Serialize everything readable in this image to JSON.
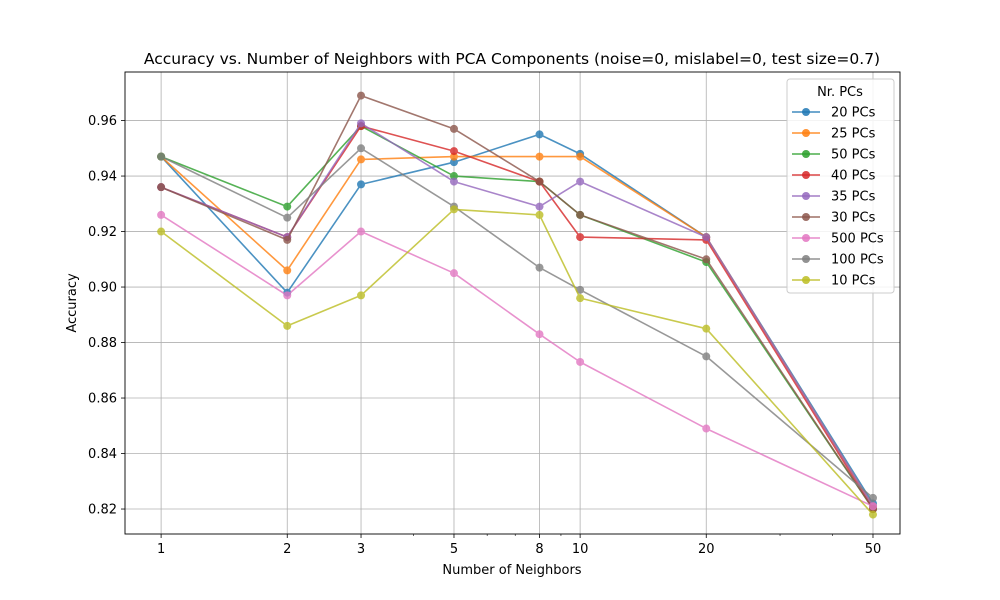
{
  "chart_data": {
    "type": "line",
    "title": "Accuracy vs. Number of Neighbors with PCA Components (noise=0, mislabel=0, test size=0.7)",
    "xlabel": "Number of Neighbors",
    "ylabel": "Accuracy",
    "x_scale": "log",
    "x": [
      1,
      2,
      3,
      5,
      8,
      10,
      20,
      50
    ],
    "x_tick_labels": [
      "1",
      "2",
      "3",
      "5",
      "8",
      "10",
      "20",
      "50"
    ],
    "ylim": [
      0.811,
      0.9775
    ],
    "y_ticks": [
      0.82,
      0.84,
      0.86,
      0.88,
      0.9,
      0.92,
      0.94,
      0.96
    ],
    "y_tick_labels": [
      "0.82",
      "0.84",
      "0.86",
      "0.88",
      "0.90",
      "0.92",
      "0.94",
      "0.96"
    ],
    "grid": true,
    "legend": {
      "title": "Nr. PCs",
      "placement": "top-right"
    },
    "series": [
      {
        "name": "20 PCs",
        "color": "#1f77b4",
        "values": [
          0.947,
          0.898,
          0.937,
          0.945,
          0.955,
          0.948,
          0.918,
          0.822
        ]
      },
      {
        "name": "25 PCs",
        "color": "#ff7f0e",
        "values": [
          0.947,
          0.906,
          0.946,
          0.947,
          0.947,
          0.947,
          0.918,
          0.821
        ]
      },
      {
        "name": "50 PCs",
        "color": "#2ca02c",
        "values": [
          0.947,
          0.929,
          0.958,
          0.94,
          0.938,
          0.926,
          0.909,
          0.82
        ]
      },
      {
        "name": "40 PCs",
        "color": "#d62728",
        "values": [
          0.936,
          0.918,
          0.958,
          0.949,
          0.938,
          0.918,
          0.917,
          0.82
        ]
      },
      {
        "name": "35 PCs",
        "color": "#9467bd",
        "values": [
          0.936,
          0.918,
          0.959,
          0.938,
          0.929,
          0.938,
          0.918,
          0.821
        ]
      },
      {
        "name": "30 PCs",
        "color": "#8c564b",
        "values": [
          0.936,
          0.917,
          0.969,
          0.957,
          0.938,
          0.926,
          0.91,
          0.82
        ]
      },
      {
        "name": "500 PCs",
        "color": "#e377c2",
        "values": [
          0.926,
          0.897,
          0.92,
          0.905,
          0.883,
          0.873,
          0.849,
          0.821
        ]
      },
      {
        "name": "100 PCs",
        "color": "#7f7f7f",
        "values": [
          0.947,
          0.925,
          0.95,
          0.929,
          0.907,
          0.899,
          0.875,
          0.824
        ]
      },
      {
        "name": "10 PCs",
        "color": "#bcbd22",
        "values": [
          0.92,
          0.886,
          0.897,
          0.928,
          0.926,
          0.896,
          0.885,
          0.818
        ]
      }
    ]
  }
}
